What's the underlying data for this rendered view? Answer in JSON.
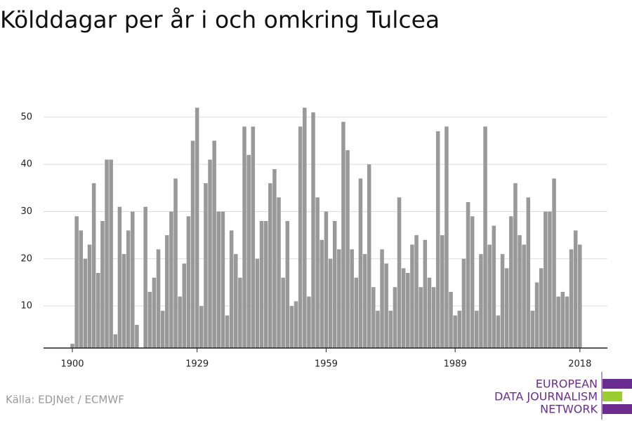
{
  "chart_data": {
    "type": "bar",
    "title": "Kölddagar per år i och omkring Tulcea",
    "source": "Källa: EDJNet / ECMWF",
    "logo": [
      "EUROPEAN",
      "DATA JOURNALISM",
      "NETWORK"
    ],
    "color": "#999999",
    "x": [
      1900,
      1901,
      1902,
      1903,
      1904,
      1905,
      1906,
      1907,
      1908,
      1909,
      1910,
      1911,
      1912,
      1913,
      1914,
      1915,
      1916,
      1917,
      1918,
      1919,
      1920,
      1921,
      1922,
      1923,
      1924,
      1925,
      1926,
      1927,
      1928,
      1929,
      1930,
      1931,
      1932,
      1933,
      1934,
      1935,
      1936,
      1937,
      1938,
      1939,
      1940,
      1941,
      1942,
      1943,
      1944,
      1945,
      1946,
      1947,
      1948,
      1949,
      1950,
      1951,
      1952,
      1953,
      1954,
      1955,
      1956,
      1957,
      1958,
      1959,
      1960,
      1961,
      1962,
      1963,
      1964,
      1965,
      1966,
      1967,
      1968,
      1969,
      1970,
      1971,
      1972,
      1973,
      1974,
      1975,
      1976,
      1977,
      1978,
      1979,
      1980,
      1981,
      1982,
      1983,
      1984,
      1985,
      1986,
      1987,
      1988,
      1989,
      1990,
      1991,
      1992,
      1993,
      1994,
      1995,
      1996,
      1997,
      1998,
      1999,
      2000,
      2001,
      2002,
      2003,
      2004,
      2005,
      2006,
      2007,
      2008,
      2009,
      2010,
      2011,
      2012,
      2013,
      2014,
      2015,
      2016,
      2017,
      2018
    ],
    "values": [
      2,
      29,
      26,
      20,
      23,
      36,
      17,
      28,
      41,
      41,
      4,
      31,
      21,
      26,
      30,
      6,
      null,
      31,
      13,
      16,
      22,
      9,
      25,
      30,
      37,
      12,
      19,
      29,
      45,
      52,
      10,
      36,
      41,
      45,
      30,
      30,
      8,
      26,
      21,
      16,
      48,
      42,
      48,
      20,
      28,
      28,
      36,
      39,
      33,
      16,
      28,
      10,
      11,
      48,
      52,
      12,
      51,
      33,
      24,
      30,
      20,
      28,
      22,
      49,
      43,
      22,
      16,
      37,
      21,
      40,
      14,
      9,
      22,
      19,
      9,
      14,
      33,
      18,
      17,
      23,
      25,
      14,
      24,
      16,
      14,
      47,
      25,
      48,
      13,
      8,
      9,
      20,
      32,
      29,
      9,
      21,
      48,
      23,
      27,
      8,
      21,
      18,
      29,
      36,
      25,
      23,
      33,
      9,
      15,
      18,
      30,
      30,
      37,
      12,
      13,
      12,
      22,
      26,
      23
    ],
    "xlim": [
      1893.3,
      2024.4
    ],
    "xticks": [
      1900,
      1929,
      1959,
      1989,
      2018
    ],
    "ylim": [
      1.1,
      54
    ],
    "yticks": [
      10,
      20,
      30,
      40,
      50
    ],
    "grid": true
  }
}
